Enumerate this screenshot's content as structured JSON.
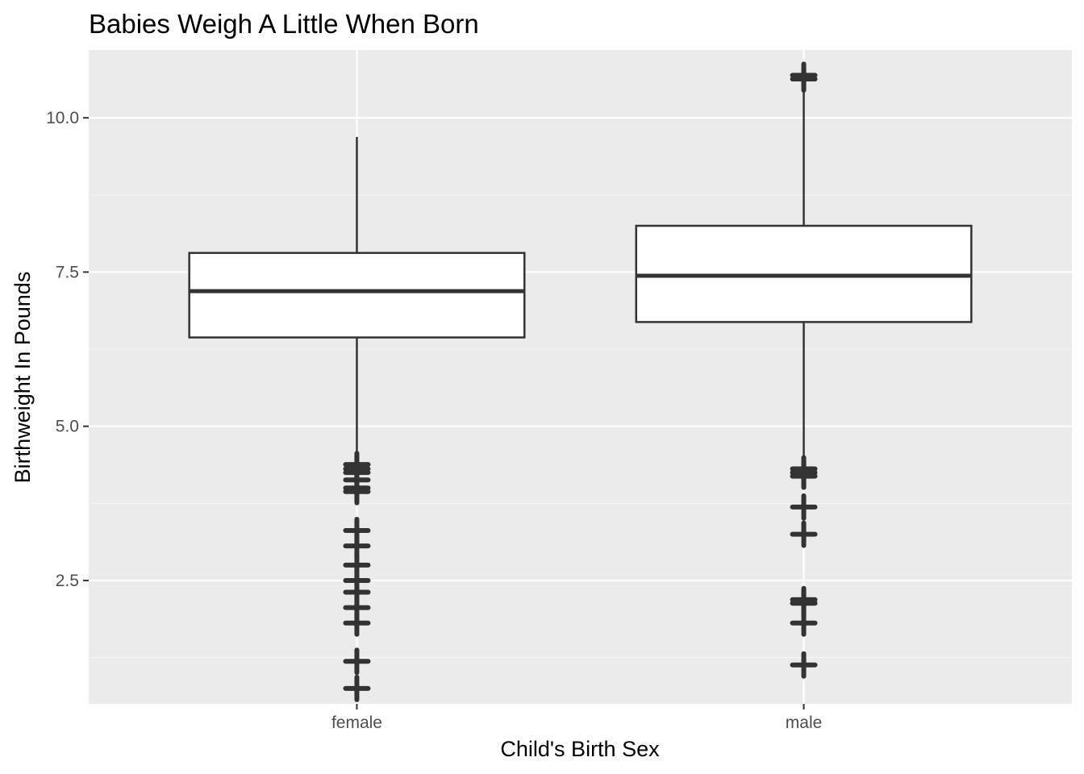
{
  "chart_data": {
    "type": "boxplot",
    "title": "Babies Weigh A Little When Born",
    "xlabel": "Child's Birth Sex",
    "ylabel": "Birthweight In Pounds",
    "categories": [
      "female",
      "male"
    ],
    "ylim": [
      0.5,
      11.1
    ],
    "yticks": [
      2.5,
      5.0,
      7.5,
      10.0
    ],
    "ytick_labels": [
      "2.5",
      "5.0",
      "7.5",
      "10.0"
    ],
    "grid": true,
    "boxes": [
      {
        "category": "female",
        "whisker_low": 4.5,
        "q1": 6.44,
        "median": 7.19,
        "q3": 7.81,
        "whisker_high": 9.69,
        "outliers": [
          0.75,
          1.19,
          1.81,
          2.06,
          2.31,
          2.5,
          2.75,
          3.06,
          3.31,
          3.94,
          4.0,
          4.13,
          4.25,
          4.31,
          4.38
        ]
      },
      {
        "category": "male",
        "whisker_low": 4.5,
        "q1": 6.69,
        "median": 7.44,
        "q3": 8.25,
        "whisker_high": 10.5,
        "outliers": [
          1.13,
          1.81,
          2.13,
          2.19,
          3.25,
          3.69,
          4.19,
          4.25,
          4.31,
          10.63,
          10.69
        ]
      }
    ],
    "colors": {
      "panel_bg": "#ebebeb",
      "grid_major": "#ffffff",
      "grid_minor": "#f5f5f5",
      "box_stroke": "#333333",
      "box_fill": "#ffffff"
    }
  }
}
